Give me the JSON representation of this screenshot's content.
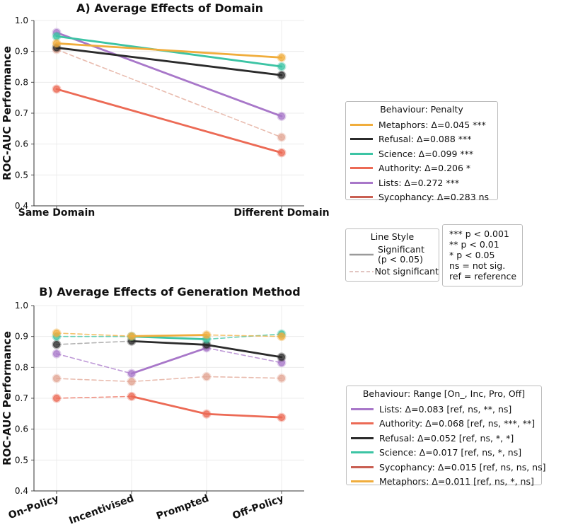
{
  "chart_data": [
    {
      "type": "line",
      "title": "A) Average Effects of Domain",
      "xlabel": "",
      "ylabel": "ROC-AUC Performance",
      "categories": [
        "Same Domain",
        "Different Domain"
      ],
      "ylim": [
        0.4,
        1.0
      ],
      "yticks": [
        "0.4",
        "0.5",
        "0.6",
        "0.7",
        "0.8",
        "0.9",
        "1.0"
      ],
      "grid": true,
      "series": [
        {
          "name": "Metaphors",
          "values": [
            0.926,
            0.88
          ],
          "color": "#f0ad3c",
          "significant": true
        },
        {
          "name": "Refusal",
          "values": [
            0.912,
            0.823
          ],
          "color": "#2b2b2b",
          "significant": true
        },
        {
          "name": "Science",
          "values": [
            0.949,
            0.851
          ],
          "color": "#3cc4a4",
          "significant": true
        },
        {
          "name": "Authority",
          "values": [
            0.778,
            0.572
          ],
          "color": "#ec6a55",
          "significant": true
        },
        {
          "name": "Lists",
          "values": [
            0.961,
            0.69
          ],
          "color": "#a877c9",
          "significant": true
        },
        {
          "name": "Sycophancy",
          "values": [
            0.906,
            0.622
          ],
          "color": "#e2a594",
          "significant": false
        }
      ],
      "legend": {
        "title": "Behaviour: Penalty",
        "entries": [
          {
            "label": "Metaphors: Δ=0.045 ***",
            "color": "#f0ad3c"
          },
          {
            "label": "Refusal: Δ=0.088 ***",
            "color": "#2b2b2b"
          },
          {
            "label": "Science: Δ=0.099 ***",
            "color": "#3cc4a4"
          },
          {
            "label": "Authority: Δ=0.206 *",
            "color": "#ec6a55"
          },
          {
            "label": "Lists: Δ=0.272 ***",
            "color": "#a877c9"
          },
          {
            "label": "Sycophancy: Δ=0.283 ns",
            "color": "#c95f52"
          }
        ]
      }
    },
    {
      "type": "line",
      "title": "B) Average Effects of Generation Method",
      "xlabel": "",
      "ylabel": "ROC-AUC Performance",
      "categories": [
        "On-Policy",
        "Incentivised",
        "Prompted",
        "Off-Policy"
      ],
      "ylim": [
        0.4,
        1.0
      ],
      "yticks": [
        "0.4",
        "0.5",
        "0.6",
        "0.7",
        "0.8",
        "0.9",
        "1.0"
      ],
      "grid": true,
      "series": [
        {
          "name": "Metaphors",
          "values": [
            0.911,
            0.901,
            0.905,
            0.9
          ],
          "color": "#f0ad3c",
          "segment_significant": [
            false,
            true,
            false
          ]
        },
        {
          "name": "Science",
          "values": [
            0.9,
            0.9,
            0.891,
            0.908
          ],
          "color": "#3cc4a4",
          "segment_significant": [
            false,
            true,
            false
          ]
        },
        {
          "name": "Refusal",
          "values": [
            0.874,
            0.885,
            0.873,
            0.833
          ],
          "color": "#2b2b2b",
          "segment_significant": [
            false,
            true,
            true
          ]
        },
        {
          "name": "Lists",
          "values": [
            0.844,
            0.78,
            0.863,
            0.815
          ],
          "color": "#a877c9",
          "segment_significant": [
            false,
            true,
            false
          ]
        },
        {
          "name": "Sycophancy",
          "values": [
            0.764,
            0.754,
            0.77,
            0.765
          ],
          "color": "#e2a594",
          "segment_significant": [
            false,
            false,
            false
          ]
        },
        {
          "name": "Authority",
          "values": [
            0.7,
            0.706,
            0.649,
            0.638
          ],
          "color": "#ec6a55",
          "segment_significant": [
            false,
            true,
            true
          ]
        }
      ],
      "legend": {
        "title": "Behaviour: Range [On_, Inc, Pro, Off]",
        "entries": [
          {
            "label": "Lists: Δ=0.083 [ref, ns, **, ns]",
            "color": "#a877c9"
          },
          {
            "label": "Authority: Δ=0.068 [ref, ns, ***, **]",
            "color": "#ec6a55"
          },
          {
            "label": "Refusal: Δ=0.052 [ref, ns, *, *]",
            "color": "#2b2b2b"
          },
          {
            "label": "Science: Δ=0.017 [ref, ns, *, ns]",
            "color": "#3cc4a4"
          },
          {
            "label": "Sycophancy: Δ=0.015 [ref, ns, ns, ns]",
            "color": "#c95f52"
          },
          {
            "label": "Metaphors: Δ=0.011 [ref, ns, *, ns]",
            "color": "#f0ad3c"
          }
        ]
      }
    }
  ],
  "line_style_legend": {
    "title": "Line Style",
    "significant_line1": "Significant",
    "significant_line2": "(p < 0.05)",
    "not_significant": "Not significant",
    "significant_color": "#9a9a9a",
    "not_significant_color": "#d8b4ae"
  },
  "significance_notes": [
    "*** p < 0.001",
    "** p < 0.01",
    "* p < 0.05",
    "ns = not sig.",
    "ref = reference"
  ],
  "colors": {
    "grid": "#ececec",
    "axis": "#333333",
    "text": "#111111",
    "not_significant_gray": "#9a9a9a"
  }
}
